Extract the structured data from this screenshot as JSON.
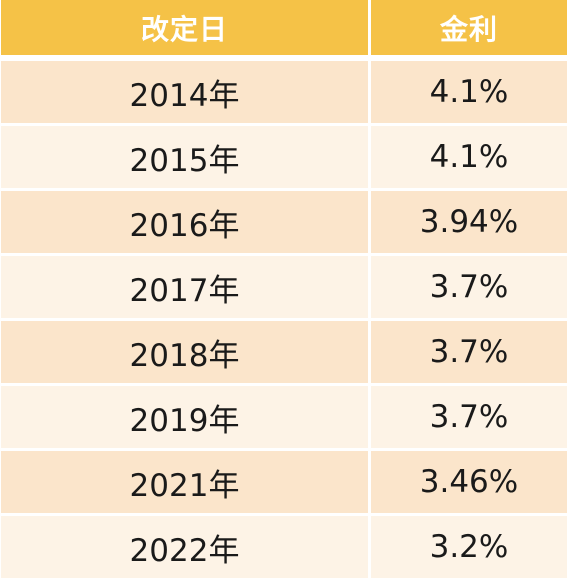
{
  "table": {
    "headers": {
      "date": "改定日",
      "rate": "金利"
    },
    "rows": [
      {
        "date": "2014年",
        "rate": "4.1%"
      },
      {
        "date": "2015年",
        "rate": "4.1%"
      },
      {
        "date": "2016年",
        "rate": "3.94%"
      },
      {
        "date": "2017年",
        "rate": "3.7%"
      },
      {
        "date": "2018年",
        "rate": "3.7%"
      },
      {
        "date": "2019年",
        "rate": "3.7%"
      },
      {
        "date": "2021年",
        "rate": "3.46%"
      },
      {
        "date": "2022年",
        "rate": "3.2%"
      }
    ]
  },
  "colors": {
    "header_bg": "#f5c247",
    "header_text": "#ffffff",
    "row_odd_bg": "#fbe5cb",
    "row_even_bg": "#fdf3e6",
    "cell_text": "#1a1a1a"
  }
}
